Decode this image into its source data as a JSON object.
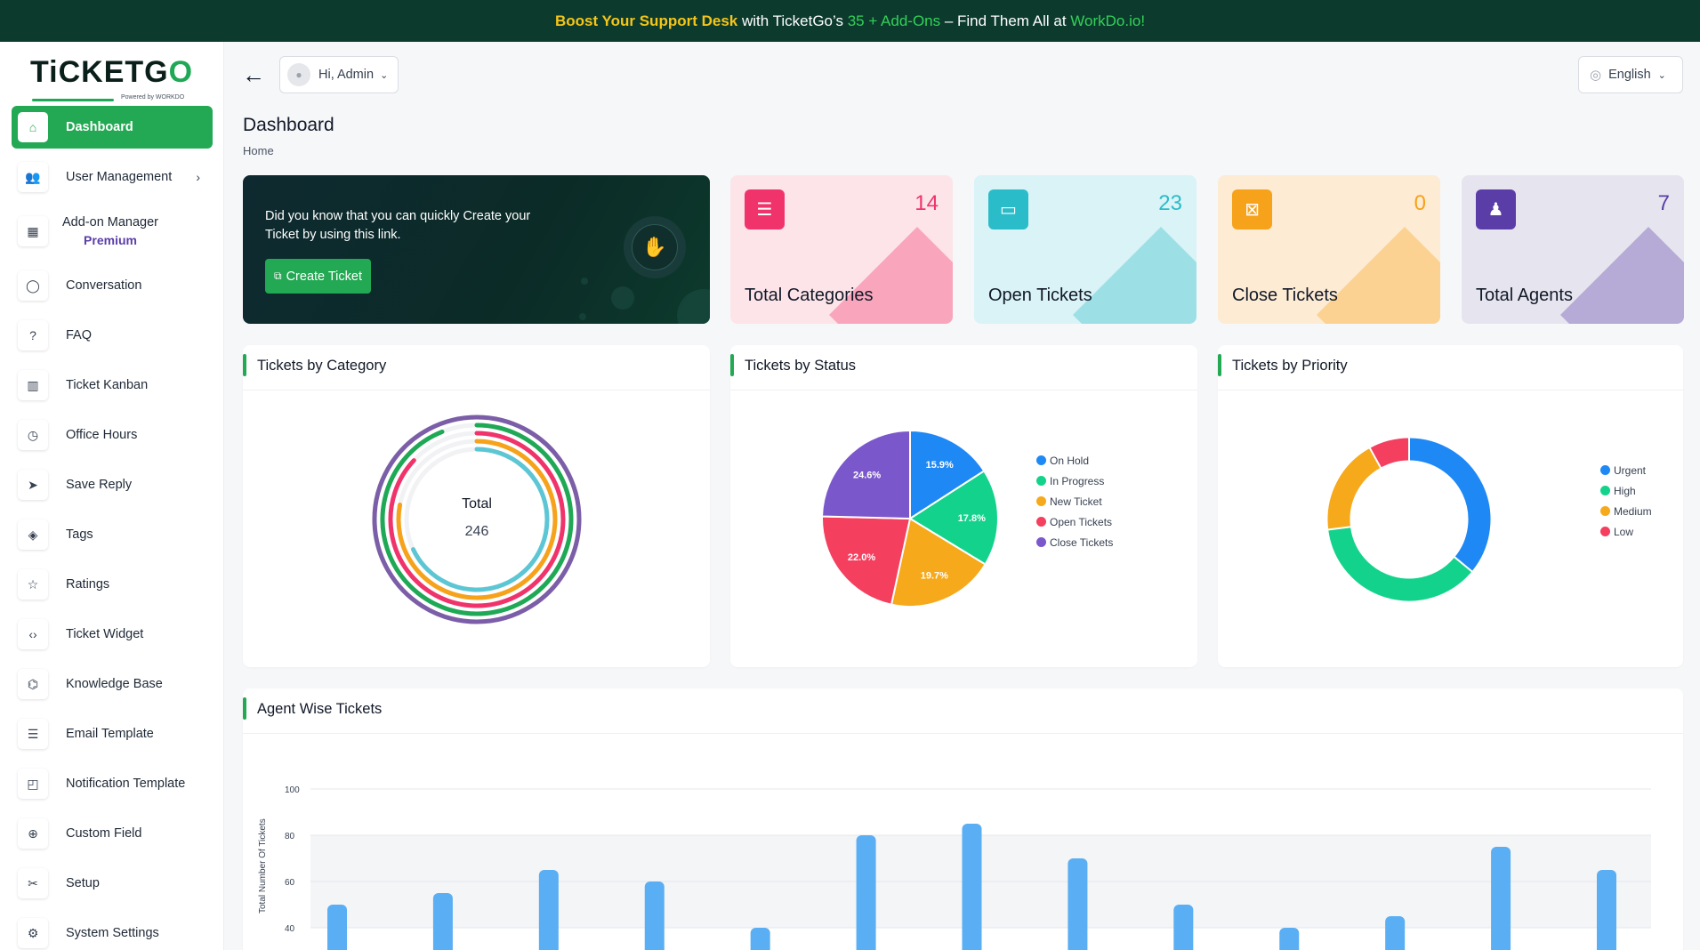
{
  "banner": {
    "p1": "Boost Your Support Desk",
    "p2": " with TicketGo’s ",
    "p3": "35 + Add-Ons",
    "p4": " – Find Them All at ",
    "p5": "WorkDo.io!"
  },
  "logo": {
    "word_a": "TiCKETG",
    "word_b": "O",
    "powered": "Powered by WORKDO"
  },
  "sidebar": {
    "items": [
      {
        "label": "Dashboard",
        "icon": "home-icon"
      },
      {
        "label": "User Management",
        "icon": "users-icon"
      },
      {
        "label": "Add-on Manager",
        "sub": "Premium",
        "icon": "apps-icon"
      },
      {
        "label": "Conversation",
        "icon": "chat-icon"
      },
      {
        "label": "FAQ",
        "icon": "question-icon"
      },
      {
        "label": "Ticket Kanban",
        "icon": "kanban-icon"
      },
      {
        "label": "Office Hours",
        "icon": "clock-icon"
      },
      {
        "label": "Save Reply",
        "icon": "send-icon"
      },
      {
        "label": "Tags",
        "icon": "tag-icon"
      },
      {
        "label": "Ratings",
        "icon": "star-icon"
      },
      {
        "label": "Ticket Widget",
        "icon": "code-icon"
      },
      {
        "label": "Knowledge Base",
        "icon": "school-icon"
      },
      {
        "label": "Email Template",
        "icon": "template-icon"
      },
      {
        "label": "Notification Template",
        "icon": "notification-icon"
      },
      {
        "label": "Custom Field",
        "icon": "plus-circle-icon"
      },
      {
        "label": "Setup",
        "icon": "setup-icon"
      },
      {
        "label": "System Settings",
        "icon": "gear-icon"
      }
    ]
  },
  "topbar": {
    "greeting": "Hi, Admin",
    "language": "English"
  },
  "page": {
    "title": "Dashboard",
    "breadcrumb": "Home"
  },
  "promo": {
    "text": "Did you know that you can quickly Create your Ticket by using this link.",
    "button": "Create Ticket"
  },
  "stats": [
    {
      "label": "Total Categories",
      "value": "14",
      "color": "#f0336b",
      "bg": "#fde4e9",
      "icon": "list-icon"
    },
    {
      "label": "Open Tickets",
      "value": "23",
      "color": "#2bbcc9",
      "bg": "#d9f3f6",
      "icon": "ticket-icon"
    },
    {
      "label": "Close Tickets",
      "value": "0",
      "color": "#f6a21b",
      "bg": "#fdebd3",
      "icon": "ticket-close-icon"
    },
    {
      "label": "Total Agents",
      "value": "7",
      "color": "#5b3da8",
      "bg": "#e6e5ef",
      "icon": "agent-icon"
    }
  ],
  "cards": {
    "category": "Tickets by Category",
    "status": "Tickets by Status",
    "priority": "Tickets by Priority",
    "agent": "Agent Wise Tickets"
  },
  "chart_data": [
    {
      "type": "radialBar",
      "title": "Tickets by Category",
      "center_label": "Total",
      "center_value": "246",
      "series": [
        {
          "color": "#7b5ea7",
          "fraction": 1.0
        },
        {
          "color": "#1fa855",
          "fraction": 0.94
        },
        {
          "color": "#f0336b",
          "fraction": 0.87
        },
        {
          "color": "#f6a21b",
          "fraction": 0.78
        },
        {
          "color": "#5cc6d4",
          "fraction": 0.68
        }
      ]
    },
    {
      "type": "pie",
      "title": "Tickets by Status",
      "slices": [
        {
          "name": "On Hold",
          "value": 15.9,
          "label": "15.9%",
          "color": "#1e88f5"
        },
        {
          "name": "In Progress",
          "value": 17.8,
          "label": "17.8%",
          "color": "#13d38c"
        },
        {
          "name": "New Ticket",
          "value": 19.7,
          "label": "19.7%",
          "color": "#f6a91b"
        },
        {
          "name": "Open Tickets",
          "value": 22.0,
          "label": "22.0%",
          "color": "#f43f5e"
        },
        {
          "name": "Close Tickets",
          "value": 24.6,
          "label": "24.6%",
          "color": "#7b57cc"
        }
      ]
    },
    {
      "type": "donut",
      "title": "Tickets by Priority",
      "slices": [
        {
          "name": "Urgent",
          "value": 36,
          "color": "#1e88f5"
        },
        {
          "name": "High",
          "value": 37,
          "color": "#13d38c"
        },
        {
          "name": "Medium",
          "value": 19,
          "color": "#f6a91b"
        },
        {
          "name": "Low",
          "value": 8,
          "color": "#f43f5e"
        }
      ]
    },
    {
      "type": "bar",
      "title": "Agent Wise Tickets",
      "ylabel": "Total Number Of Tickets",
      "yticks": [
        "100",
        "80",
        "60",
        "40"
      ],
      "ylim": [
        0,
        100
      ],
      "values": [
        50,
        55,
        65,
        60,
        40,
        80,
        85,
        70,
        50,
        40,
        45,
        75,
        65
      ],
      "color": "#5aaef3"
    }
  ]
}
